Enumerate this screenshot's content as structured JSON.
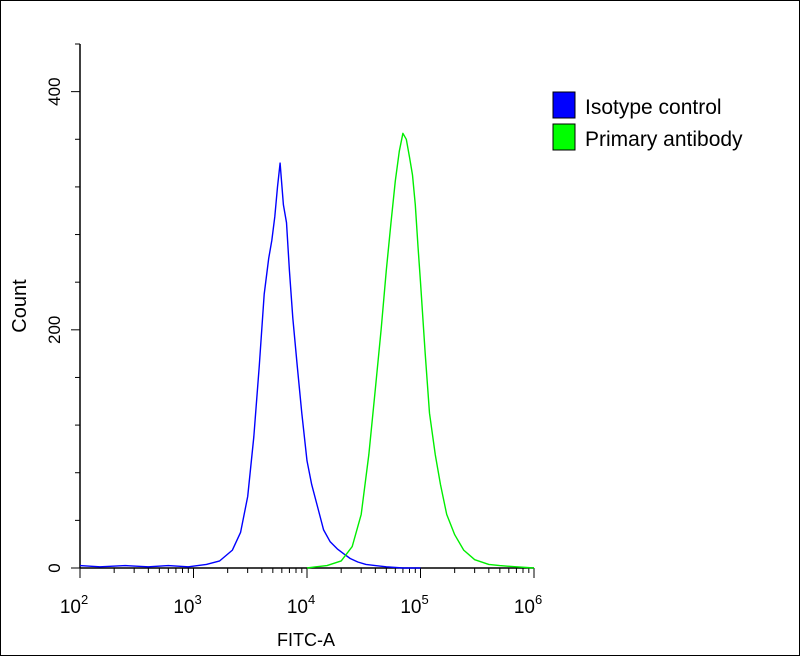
{
  "chart_data": {
    "type": "line",
    "xlabel": "FITC-A",
    "ylabel": "Count",
    "x_scale": "log",
    "xlim": [
      100,
      1000000
    ],
    "ylim": [
      0,
      440
    ],
    "x_ticks": [
      {
        "value": 100,
        "base": "10",
        "exp": "2"
      },
      {
        "value": 1000,
        "base": "10",
        "exp": "3"
      },
      {
        "value": 10000,
        "base": "10",
        "exp": "4"
      },
      {
        "value": 100000,
        "base": "10",
        "exp": "5"
      },
      {
        "value": 1000000,
        "base": "10",
        "exp": "6"
      }
    ],
    "y_ticks": [
      0,
      200,
      400
    ],
    "grid": false,
    "legend": "top-right",
    "series": [
      {
        "name": "Isotype control",
        "color": "#0000ff",
        "x": [
          100,
          150,
          250,
          400,
          600,
          900,
          1300,
          1700,
          2200,
          2600,
          3000,
          3400,
          3800,
          4200,
          4600,
          4900,
          5200,
          5500,
          5800,
          6200,
          6600,
          7000,
          7500,
          8200,
          9000,
          10000,
          11000,
          12500,
          14000,
          16000,
          18500,
          21000,
          24000,
          28000,
          33000,
          40000,
          50000,
          70000,
          100000
        ],
        "y": [
          2,
          1,
          2,
          1,
          2,
          1,
          3,
          6,
          15,
          30,
          60,
          110,
          170,
          230,
          260,
          275,
          295,
          320,
          340,
          305,
          290,
          250,
          210,
          170,
          130,
          90,
          70,
          50,
          32,
          22,
          16,
          12,
          8,
          5,
          3,
          2,
          1,
          0,
          0
        ]
      },
      {
        "name": "Primary antibody",
        "color": "#00ee00",
        "x": [
          10000,
          12000,
          15000,
          20000,
          25000,
          30000,
          35000,
          40000,
          45000,
          50000,
          55000,
          60000,
          65000,
          70000,
          75000,
          80000,
          85000,
          90000,
          95000,
          100000,
          110000,
          120000,
          135000,
          150000,
          170000,
          200000,
          240000,
          300000,
          400000,
          500000,
          700000,
          1000000
        ],
        "y": [
          0,
          1,
          2,
          6,
          18,
          45,
          95,
          150,
          200,
          250,
          290,
          325,
          350,
          365,
          360,
          345,
          330,
          305,
          270,
          240,
          180,
          130,
          95,
          70,
          45,
          28,
          15,
          7,
          3,
          2,
          1,
          0
        ]
      }
    ]
  }
}
